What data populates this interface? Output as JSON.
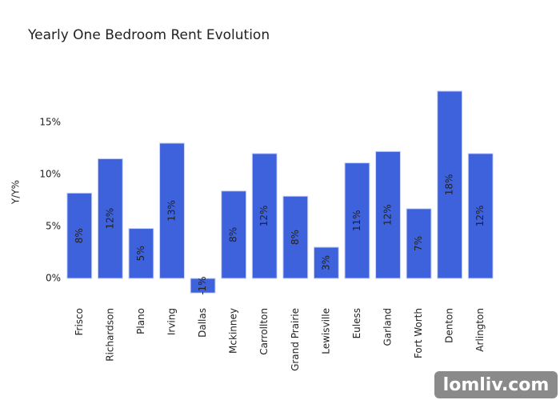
{
  "chart_data": {
    "type": "bar",
    "title": "Yearly One Bedroom Rent Evolution",
    "y_label": "Y/Y%",
    "categories": [
      "Frisco",
      "Richardson",
      "Plano",
      "Irving",
      "Dallas",
      "Mckinney",
      "Carrollton",
      "Grand Prairie",
      "Lewisville",
      "Euless",
      "Garland",
      "Fort Worth",
      "Denton",
      "Arlington"
    ],
    "values": [
      8.2,
      11.5,
      4.8,
      13.0,
      -1.4,
      8.4,
      12.0,
      7.9,
      3.0,
      11.1,
      12.2,
      6.7,
      18.0,
      12.0
    ],
    "value_labels": [
      "8%",
      "12%",
      "5%",
      "13%",
      "-1%",
      "8%",
      "12%",
      "8%",
      "3%",
      "11%",
      "12%",
      "7%",
      "18%",
      "12%"
    ],
    "color": "#3d62db",
    "ylim": [
      -1.5,
      18.3
    ],
    "yticks": [
      {
        "value": 0,
        "label": "0%"
      },
      {
        "value": 5,
        "label": "5%"
      },
      {
        "value": 10,
        "label": "10%"
      },
      {
        "value": 15,
        "label": "15%"
      }
    ],
    "grid": false,
    "watermark": "lomliv.com"
  }
}
